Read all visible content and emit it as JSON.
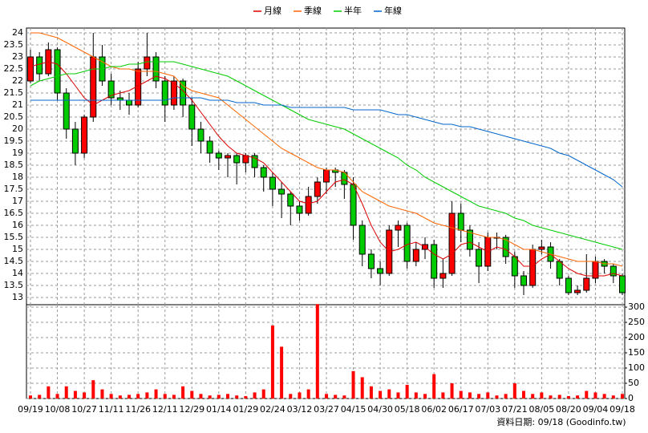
{
  "chart_data": {
    "type": "candlestick",
    "source": "資料日期: 09/18 (Goodinfo.tw)",
    "categories": [
      "09/19",
      null,
      null,
      "10/08",
      null,
      null,
      "10/27",
      null,
      null,
      "11/11",
      null,
      null,
      "11/26",
      null,
      null,
      "12/11",
      null,
      null,
      "12/29",
      null,
      null,
      "01/14",
      null,
      null,
      "01/29",
      null,
      null,
      "02/24",
      null,
      null,
      "03/12",
      null,
      null,
      "03/27",
      null,
      null,
      "04/15",
      null,
      null,
      "04/30",
      null,
      null,
      "05/18",
      null,
      null,
      "06/02",
      null,
      null,
      "06/17",
      null,
      null,
      "07/03",
      null,
      null,
      "07/21",
      null,
      null,
      "08/05",
      null,
      null,
      "08/20",
      null,
      null,
      "09/04",
      null,
      null,
      "09/18"
    ],
    "open": [
      22.0,
      23.0,
      22.3,
      23.3,
      21.5,
      20.0,
      19.0,
      20.5,
      23.0,
      22.0,
      21.3,
      21.2,
      21.0,
      22.5,
      23.0,
      22.0,
      21.0,
      22.0,
      21.0,
      20.0,
      19.5,
      19.0,
      18.8,
      18.9,
      18.6,
      18.9,
      18.4,
      18.0,
      17.5,
      17.3,
      16.8,
      16.5,
      17.2,
      17.8,
      18.3,
      18.2,
      17.7,
      16.0,
      14.8,
      14.2,
      14.0,
      15.8,
      16.0,
      14.5,
      15.0,
      15.2,
      13.8,
      14.0,
      16.5,
      15.8,
      15.0,
      14.3,
      15.5,
      15.5,
      14.7,
      13.9,
      13.5,
      15.0,
      15.1,
      14.5,
      13.8,
      13.2,
      13.3,
      13.8,
      14.5,
      14.3,
      13.9
    ],
    "high": [
      23.3,
      23.2,
      23.6,
      23.4,
      21.7,
      20.3,
      20.6,
      24.0,
      23.5,
      22.3,
      21.6,
      21.5,
      22.8,
      24.0,
      23.2,
      22.2,
      22.2,
      22.1,
      21.3,
      20.3,
      19.7,
      19.1,
      19.0,
      19.0,
      19.0,
      19.0,
      18.5,
      18.2,
      17.8,
      17.4,
      17.0,
      17.6,
      18.0,
      18.4,
      18.4,
      18.3,
      18.0,
      16.2,
      15.0,
      14.5,
      16.0,
      16.2,
      16.1,
      15.3,
      15.5,
      15.4,
      14.6,
      17.0,
      16.9,
      16.0,
      15.3,
      15.7,
      15.7,
      15.6,
      14.9,
      14.1,
      15.2,
      15.4,
      15.3,
      14.6,
      13.9,
      13.5,
      14.8,
      14.7,
      14.6,
      14.4,
      14.0
    ],
    "low": [
      21.9,
      22.0,
      22.2,
      21.2,
      19.6,
      18.5,
      18.8,
      20.3,
      21.8,
      21.0,
      20.8,
      20.6,
      20.9,
      22.2,
      21.7,
      20.3,
      20.8,
      20.5,
      19.3,
      19.0,
      18.6,
      18.3,
      18.0,
      17.7,
      18.2,
      18.0,
      17.4,
      16.8,
      16.3,
      16.0,
      16.2,
      16.4,
      16.9,
      17.3,
      17.6,
      17.1,
      15.4,
      14.3,
      13.8,
      13.5,
      13.9,
      15.1,
      14.2,
      14.3,
      14.6,
      13.4,
      13.4,
      13.9,
      15.3,
      14.7,
      13.6,
      14.1,
      15.0,
      14.4,
      13.4,
      13.1,
      13.4,
      14.8,
      14.2,
      13.5,
      13.1,
      13.1,
      13.2,
      13.6,
      14.0,
      13.6,
      13.1
    ],
    "close": [
      23.0,
      22.3,
      23.3,
      21.5,
      20.0,
      19.0,
      20.5,
      23.0,
      22.0,
      21.3,
      21.2,
      21.0,
      22.5,
      23.0,
      22.0,
      21.0,
      22.0,
      21.0,
      20.0,
      19.5,
      19.0,
      18.8,
      18.9,
      18.6,
      18.9,
      18.4,
      18.0,
      17.5,
      17.3,
      16.8,
      16.5,
      17.2,
      17.8,
      18.3,
      18.2,
      17.7,
      16.0,
      14.8,
      14.2,
      14.0,
      15.8,
      16.0,
      14.5,
      15.0,
      15.2,
      13.8,
      14.0,
      16.5,
      15.8,
      15.0,
      14.3,
      15.5,
      15.5,
      14.7,
      13.9,
      13.5,
      15.0,
      15.1,
      14.5,
      13.8,
      13.2,
      13.3,
      13.8,
      14.5,
      14.3,
      13.9,
      13.2
    ],
    "up_color": "#ff0000",
    "down_color": "#00cc00",
    "volume": [
      10,
      12,
      40,
      15,
      40,
      25,
      20,
      60,
      30,
      15,
      10,
      12,
      15,
      20,
      30,
      15,
      12,
      40,
      25,
      15,
      10,
      12,
      15,
      10,
      8,
      20,
      30,
      240,
      170,
      15,
      20,
      30,
      310,
      15,
      12,
      10,
      90,
      70,
      40,
      25,
      30,
      20,
      45,
      20,
      15,
      80,
      20,
      50,
      25,
      20,
      15,
      20,
      10,
      15,
      50,
      25,
      15,
      20,
      10,
      12,
      8,
      10,
      25,
      20,
      15,
      10,
      15
    ],
    "volume_color": "#ff0000",
    "series": [
      {
        "name": "月線",
        "color": "#dd0000",
        "values": [
          22.6,
          22.7,
          22.8,
          22.7,
          22.3,
          21.8,
          21.3,
          21.0,
          21.2,
          21.4,
          21.5,
          21.6,
          21.8,
          22.0,
          22.2,
          22.1,
          21.9,
          21.6,
          21.2,
          20.7,
          20.2,
          19.7,
          19.3,
          19.0,
          18.9,
          18.8,
          18.6,
          18.2,
          17.8,
          17.4,
          17.0,
          16.9,
          17.0,
          17.4,
          17.8,
          17.9,
          17.7,
          16.9,
          16.0,
          15.3,
          14.9,
          15.0,
          15.2,
          15.3,
          15.1,
          14.8,
          14.6,
          14.8,
          15.2,
          15.3,
          15.1,
          14.9,
          15.1,
          15.0,
          14.7,
          14.3,
          14.3,
          14.6,
          14.8,
          14.5,
          14.2,
          14.0,
          13.9,
          13.9,
          13.9,
          14.0,
          13.9
        ]
      },
      {
        "name": "季線",
        "color": "#ff6600",
        "values": [
          24.0,
          24.0,
          23.9,
          23.8,
          23.6,
          23.4,
          23.2,
          23.0,
          22.8,
          22.6,
          22.5,
          22.5,
          22.4,
          22.4,
          22.4,
          22.3,
          22.2,
          21.8,
          21.6,
          21.5,
          21.4,
          21.3,
          21.0,
          20.7,
          20.4,
          20.1,
          19.8,
          19.5,
          19.2,
          19.0,
          18.8,
          18.6,
          18.4,
          18.3,
          18.3,
          18.2,
          17.8,
          17.4,
          17.2,
          17.0,
          16.8,
          16.7,
          16.6,
          16.5,
          16.3,
          16.1,
          16.0,
          15.9,
          15.8,
          15.7,
          15.6,
          15.5,
          15.5,
          15.4,
          15.2,
          15.0,
          15.0,
          14.9,
          14.8,
          14.7,
          14.6,
          14.5,
          14.5,
          14.5,
          14.4,
          14.4,
          14.3
        ]
      },
      {
        "name": "半年",
        "color": "#00cc00",
        "values": [
          21.8,
          22.0,
          22.1,
          22.2,
          22.3,
          22.3,
          22.4,
          22.5,
          22.5,
          22.6,
          22.6,
          22.7,
          22.7,
          22.8,
          22.8,
          22.8,
          22.8,
          22.7,
          22.6,
          22.5,
          22.4,
          22.3,
          22.2,
          22.0,
          21.8,
          21.6,
          21.4,
          21.2,
          21.0,
          20.8,
          20.6,
          20.4,
          20.3,
          20.2,
          20.1,
          20.0,
          19.8,
          19.6,
          19.4,
          19.2,
          19.0,
          18.8,
          18.5,
          18.3,
          18.0,
          17.8,
          17.6,
          17.4,
          17.2,
          17.0,
          16.8,
          16.7,
          16.6,
          16.5,
          16.3,
          16.2,
          16.0,
          15.9,
          15.8,
          15.7,
          15.6,
          15.5,
          15.4,
          15.3,
          15.2,
          15.1,
          15.0
        ]
      },
      {
        "name": "年線",
        "color": "#0066cc",
        "values": [
          21.2,
          21.2,
          21.2,
          21.2,
          21.2,
          21.2,
          21.2,
          21.2,
          21.2,
          21.2,
          21.2,
          21.2,
          21.2,
          21.2,
          21.2,
          21.2,
          21.3,
          21.3,
          21.3,
          21.3,
          21.2,
          21.2,
          21.2,
          21.1,
          21.1,
          21.1,
          21.0,
          21.0,
          21.0,
          20.9,
          20.9,
          20.9,
          20.9,
          20.9,
          20.9,
          20.9,
          20.8,
          20.8,
          20.8,
          20.8,
          20.7,
          20.6,
          20.6,
          20.5,
          20.4,
          20.3,
          20.2,
          20.2,
          20.1,
          20.1,
          20.0,
          19.9,
          19.8,
          19.7,
          19.6,
          19.5,
          19.4,
          19.3,
          19.2,
          19.0,
          18.9,
          18.7,
          18.5,
          18.3,
          18.1,
          17.9,
          17.6
        ]
      }
    ],
    "ylim": [
      12.7,
      24.2
    ],
    "yticks": [
      13,
      13.5,
      14,
      14.5,
      15,
      15.5,
      16,
      16.5,
      17,
      17.5,
      18,
      18.5,
      19,
      19.5,
      20,
      20.5,
      21,
      21.5,
      22,
      22.5,
      23,
      23.5,
      24
    ],
    "y2lim": [
      0,
      308
    ],
    "y2ticks": [
      0,
      50,
      100,
      150,
      200,
      250,
      300
    ],
    "grid": true
  }
}
